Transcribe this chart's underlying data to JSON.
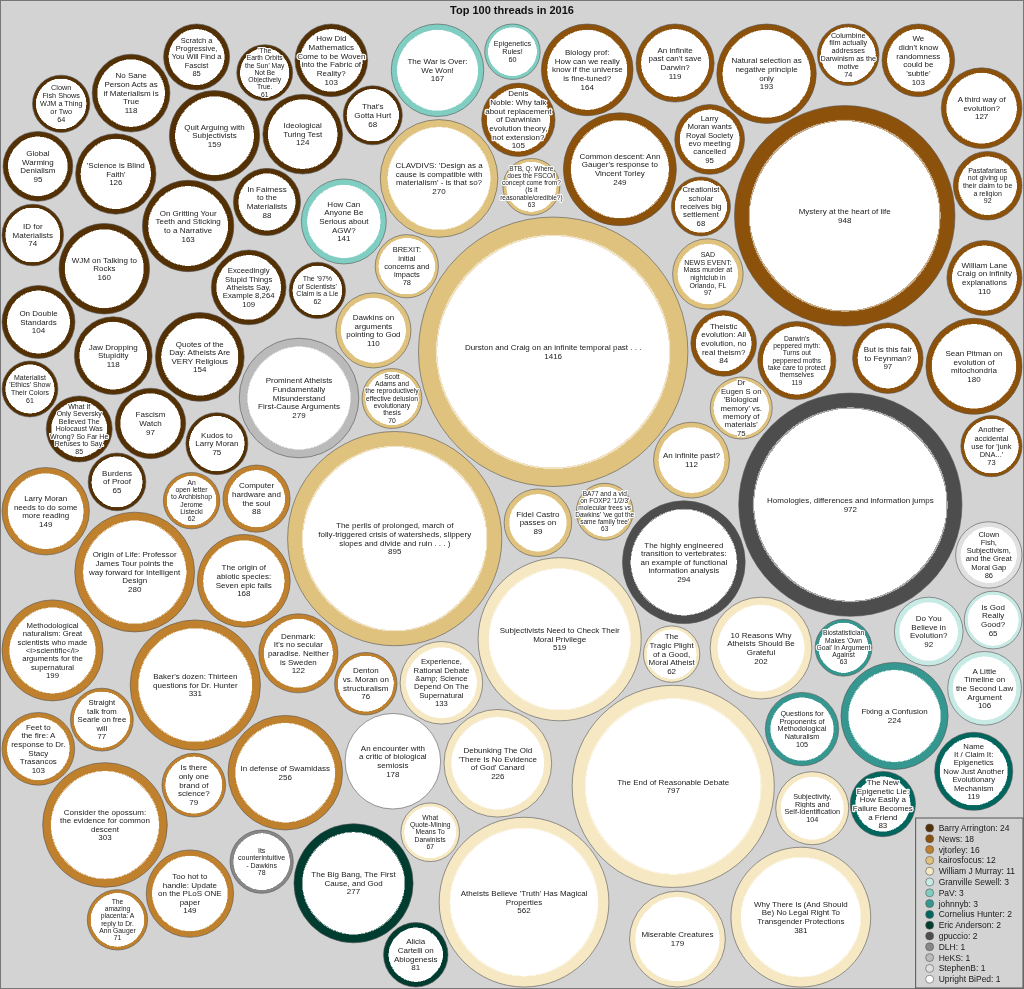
{
  "chart_data": {
    "type": "other",
    "title": "Top 100 threads in 2016",
    "categories": [
      "Durston and Craig on an infinite temporal past . . .",
      "Homologies, differences and information jumps",
      "Mystery at the heart of life",
      "The perils of prolonged, march of folly-triggered crisis of watersheds, slippery slopes and divide and ruin . . . )",
      "The End of Reasonable Debate",
      "Atheists Believe 'Truth' Has Magical Properties",
      "Subjectivists Need to Check Their Moral Privilege",
      "Why There Is (And Should Be) No Legal Right To Transgender Protections",
      "Baker's dozen: Thirteen questions for Dr. Hunter",
      "Consider the opossum: the evidence for common descent",
      "The highly engineered transition to vertebrates: an example of functional information analysis",
      "Origin of Life: Professor James Tour points the way forward for Intelligent Design",
      "Prominent Atheists Fundamentally Misunderstand First-Cause Arguments",
      "The Big Bang, The First Cause, and God",
      "CLAVDIVS: 'Design as a cause is compatible with materialism' - is that so?",
      "In defense of Swamidass",
      "Common descent: Ann Gauger's response to Vincent Torley",
      "Debunking The Old 'There Is No Evidence of God' Canard",
      "Fixing a Confusion",
      "10 Reasons Why Atheists Should Be Grateful",
      "Methodological naturalism: Great scientists who made <i>scientific</i> arguments for the supernatural",
      "Natural selection as negative principle only",
      "Sean Pitman on evolution of mitochondria",
      "Miserable Creatures",
      "An encounter with a critic of biological semiosis",
      "The origin of abiotic species: Seven epic fails",
      "The War is Over: We Won!",
      "Biology prof: How can we really know if the universe is fine-tuned?",
      "On Gritting Your Teeth and Sticking to a Narrative",
      "WJM on Talking to Rocks",
      "Quit Arguing with Subjectivists",
      "Quotes of the Day: Atheists Are VERY Religious",
      "Too hot to handle: Update on the PLoS ONE paper",
      "Larry Moran needs to do some more reading",
      "How Can Anyone Be Serious about AGW?",
      "Experience, Rational Debate &amp; Science Depend On The Supernatural",
      "A third way of evolution?",
      "'Science is Blind Faith'",
      "Ideological Turing Test",
      "Denmark: It's no secular paradise. Neither is Sweden",
      "Darwin's peppered myth: Turns out peppered moths take care to protect themselves",
      "An infinite past can't save Darwin?",
      "Name It / Claim It: Epigenetics Now Just Another Evolutionary Mechanism",
      "Jaw Dropping Stupidity",
      "No Sane Person Acts as if Materialism is True",
      "An infinite past?",
      "Dawkins on arguments pointing to God",
      "William Lane Craig on infinity explanations",
      "Exceedingly Stupid Things Atheists Say, Example 8,264",
      "A Little Timeline on the Second Law Argument",
      "Denis Noble: Why talk about replacement of Darwinian evolution theory, not extension?",
      "Questions for Proponents of Methodological Naturalism",
      "On Double Standards",
      "Subjectivity, Rights and Self-Identification",
      "How Did Mathematics Come to be Woven into the Fabric of Reality?",
      "We didn't know randomness could be 'subtle'",
      "Feet to the fire: A response to Dr. Stacy Trasancos",
      "Fascism Watch",
      "But is this fair to Feynman?",
      "SAD NEWS EVENT: Mass murder at nightclub in Orlando, FL",
      "Global Warming Denialism",
      "Larry Moran wants Royal Society evo meeting cancelled",
      "Pastafarians not giving up their claim to be a religion",
      "Do You Believe in Evolution?",
      "Fidel Castro passes on",
      "In Fairness to the Materialists",
      "Computer hardware and the soul",
      "Clown Fish, Subjectivism, and the Great Moral Gap",
      "What If Only Seversky Believed The Holocaust Was Wrong? So Far He Refuses to Say.",
      "Scratch a Progressive, You Will Find a Fascist",
      "Theistic evolution: All evolution, no real theism?",
      "The New Epigenetic Lie: How Easily a Failure Becomes a Friend",
      "Alicia Cartelli on Abiogenesis",
      "Is there only one brand of science?",
      "BREXIT: initial concerns and impacts",
      "Its counterintuitive - Dawkins",
      "Straight talk from Searle on free will",
      "Denton vs. Moran on structuralism",
      "Kudos to Larry Moran",
      "Dr Eugen S on 'Biological memory' vs. memory of materials'",
      "ID for Materialists",
      "Columbine film actually addresses Darwinism as the motive",
      "Another accidental use for 'junk DNA...'",
      "The amazing placenta: A reply to Dr. Ann Gauger",
      "Scott Adams and the reproductively effective delusion evolutionary thesis",
      "That's Gotta Hurt",
      "Creationist scholar receives big settlement",
      "What Quote-Mining Means To Darwinists",
      "Burdens of Proof",
      "Is God Really Good?",
      "Clown Fish Shows WJM a Thing or Two",
      "BTB, Q: Where does the FSCO/I concept come from? (Is it reasonable/credible?)",
      "BA77 and a vid on FOXP2 '1/2/3' molecular trees vs Dawkins' 'we got the same family tree'",
      "Biostatistician Makes 'Own Goal' In Argument Against",
      "The '97% of Scientists' Claim is a Lie",
      "An open letter to Archbishop Jerome Listecki",
      "The Tragic Plight of a Good, Moral Atheist",
      "Materialist 'Ethics' Show Their Colors",
      "'The Earth Orbits the Sun' May Not Be Objectively True.",
      "Epigenetics Rules!"
    ],
    "data_labels": true,
    "legend": "bottom right",
    "series": [
      {
        "name": "Barry Arrington: 24",
        "color": "#543005",
        "values": [
          null,
          null,
          null,
          null,
          null,
          null,
          null,
          null,
          null,
          null,
          null,
          null,
          null,
          null,
          null,
          null,
          null,
          null,
          null,
          null,
          null,
          null,
          null,
          null,
          null,
          null,
          null,
          null,
          163,
          160,
          159,
          154,
          null,
          null,
          null,
          null,
          null,
          126,
          124,
          null,
          null,
          null,
          null,
          118,
          118,
          null,
          null,
          null,
          109,
          null,
          null,
          null,
          104,
          null,
          103,
          null,
          null,
          97,
          null,
          null,
          95,
          null,
          null,
          null,
          null,
          88,
          null,
          null,
          85,
          85,
          null,
          null,
          null,
          null,
          null,
          null,
          null,
          null,
          75,
          null,
          74,
          null,
          null,
          null,
          null,
          68,
          null,
          null,
          65,
          null,
          64,
          null,
          null,
          null,
          62,
          null,
          null,
          61,
          61,
          null
        ]
      },
      {
        "name": "News: 18",
        "color": "#8c510a",
        "values": [
          null,
          null,
          948,
          null,
          null,
          null,
          null,
          null,
          null,
          null,
          null,
          null,
          null,
          null,
          null,
          null,
          249,
          null,
          null,
          null,
          null,
          193,
          180,
          null,
          null,
          null,
          null,
          164,
          null,
          null,
          null,
          null,
          null,
          null,
          null,
          null,
          127,
          null,
          null,
          null,
          119,
          119,
          null,
          null,
          null,
          null,
          null,
          110,
          null,
          null,
          105,
          null,
          null,
          null,
          null,
          103,
          null,
          null,
          97,
          null,
          null,
          95,
          92,
          null,
          null,
          null,
          null,
          null,
          null,
          null,
          84,
          null,
          null,
          null,
          null,
          null,
          null,
          null,
          null,
          null,
          null,
          74,
          73,
          null,
          null,
          null,
          68,
          null,
          null,
          null,
          null,
          null,
          null,
          null,
          null,
          null,
          null,
          null,
          null,
          null
        ]
      },
      {
        "name": "vjtorley: 16",
        "color": "#bf812d",
        "values": [
          null,
          null,
          null,
          null,
          null,
          null,
          null,
          null,
          331,
          303,
          null,
          280,
          null,
          null,
          null,
          256,
          null,
          null,
          null,
          null,
          199,
          null,
          null,
          null,
          null,
          168,
          null,
          null,
          null,
          null,
          null,
          null,
          149,
          149,
          null,
          null,
          null,
          null,
          null,
          122,
          null,
          null,
          null,
          null,
          null,
          null,
          null,
          null,
          null,
          null,
          null,
          null,
          null,
          null,
          null,
          null,
          103,
          null,
          null,
          null,
          null,
          null,
          null,
          null,
          null,
          null,
          88,
          null,
          null,
          null,
          null,
          null,
          null,
          79,
          null,
          null,
          77,
          76,
          null,
          null,
          null,
          null,
          null,
          71,
          null,
          null,
          null,
          null,
          null,
          null,
          null,
          null,
          null,
          null,
          null,
          62,
          null,
          null,
          null,
          null
        ]
      },
      {
        "name": "kairosfocus: 12",
        "color": "#dfc27d",
        "values": [
          1416,
          null,
          null,
          895,
          null,
          null,
          null,
          null,
          null,
          null,
          null,
          null,
          null,
          null,
          270,
          null,
          null,
          null,
          null,
          null,
          null,
          null,
          null,
          null,
          null,
          null,
          null,
          null,
          null,
          null,
          null,
          null,
          null,
          null,
          null,
          null,
          null,
          null,
          null,
          null,
          null,
          null,
          null,
          null,
          null,
          112,
          110,
          null,
          null,
          null,
          null,
          null,
          null,
          null,
          null,
          null,
          null,
          null,
          null,
          97,
          null,
          null,
          null,
          null,
          89,
          null,
          null,
          null,
          null,
          null,
          null,
          null,
          null,
          null,
          78,
          null,
          null,
          null,
          null,
          75,
          null,
          null,
          null,
          null,
          70,
          null,
          null,
          null,
          null,
          null,
          null,
          63,
          63,
          null,
          null,
          null,
          null,
          null,
          null,
          null
        ]
      },
      {
        "name": "William J Murray: 11",
        "color": "#f6e8c3",
        "values": [
          null,
          null,
          null,
          null,
          797,
          562,
          519,
          381,
          null,
          null,
          null,
          null,
          null,
          null,
          null,
          null,
          null,
          226,
          null,
          202,
          null,
          null,
          null,
          179,
          null,
          null,
          null,
          null,
          null,
          null,
          null,
          null,
          null,
          null,
          null,
          133,
          null,
          null,
          null,
          null,
          null,
          null,
          null,
          null,
          null,
          null,
          null,
          null,
          null,
          null,
          null,
          null,
          null,
          104,
          null,
          null,
          null,
          null,
          null,
          null,
          null,
          null,
          null,
          null,
          null,
          null,
          null,
          null,
          null,
          null,
          null,
          null,
          null,
          null,
          null,
          null,
          null,
          null,
          null,
          null,
          null,
          null,
          null,
          null,
          null,
          null,
          null,
          67,
          null,
          null,
          null,
          null,
          null,
          null,
          null,
          null,
          62,
          null,
          null,
          null
        ]
      },
      {
        "name": "Granville Sewell: 3",
        "color": "#c7eae5",
        "values": [
          null,
          null,
          null,
          null,
          null,
          null,
          null,
          null,
          null,
          null,
          null,
          null,
          null,
          null,
          null,
          null,
          null,
          null,
          null,
          null,
          null,
          null,
          null,
          null,
          null,
          null,
          null,
          null,
          null,
          null,
          null,
          null,
          null,
          null,
          null,
          null,
          null,
          null,
          null,
          null,
          null,
          null,
          null,
          null,
          null,
          null,
          null,
          null,
          null,
          106,
          null,
          null,
          null,
          null,
          null,
          null,
          null,
          null,
          null,
          null,
          null,
          null,
          null,
          92,
          null,
          null,
          null,
          null,
          null,
          null,
          null,
          null,
          null,
          null,
          null,
          null,
          null,
          null,
          null,
          null,
          null,
          null,
          null,
          null,
          null,
          null,
          null,
          null,
          null,
          65,
          null,
          null,
          null,
          null,
          null,
          null,
          null,
          null,
          null,
          null
        ]
      },
      {
        "name": "PaV: 3",
        "color": "#80cdc1",
        "values": [
          null,
          null,
          null,
          null,
          null,
          null,
          null,
          null,
          null,
          null,
          null,
          null,
          null,
          null,
          null,
          null,
          null,
          null,
          null,
          null,
          null,
          null,
          null,
          null,
          null,
          null,
          167,
          null,
          null,
          null,
          null,
          null,
          null,
          null,
          141,
          null,
          null,
          null,
          null,
          null,
          null,
          null,
          null,
          null,
          null,
          null,
          null,
          null,
          null,
          null,
          null,
          null,
          null,
          null,
          null,
          null,
          null,
          null,
          null,
          null,
          null,
          null,
          null,
          null,
          null,
          null,
          null,
          null,
          null,
          null,
          null,
          null,
          null,
          null,
          null,
          null,
          null,
          null,
          null,
          null,
          null,
          null,
          null,
          null,
          null,
          null,
          null,
          null,
          null,
          null,
          null,
          null,
          null,
          null,
          null,
          null,
          null,
          null,
          null,
          60
        ]
      },
      {
        "name": "johnnyb: 3",
        "color": "#35978f",
        "values": [
          null,
          null,
          null,
          null,
          null,
          null,
          null,
          null,
          null,
          null,
          null,
          null,
          null,
          null,
          null,
          null,
          null,
          null,
          224,
          null,
          null,
          null,
          null,
          null,
          null,
          null,
          null,
          null,
          null,
          null,
          null,
          null,
          null,
          null,
          null,
          null,
          null,
          null,
          null,
          null,
          null,
          null,
          null,
          null,
          null,
          null,
          null,
          null,
          null,
          null,
          null,
          105,
          null,
          null,
          null,
          null,
          null,
          null,
          null,
          null,
          null,
          null,
          null,
          null,
          null,
          null,
          null,
          null,
          null,
          null,
          null,
          null,
          null,
          null,
          null,
          null,
          null,
          null,
          null,
          null,
          null,
          null,
          null,
          null,
          null,
          null,
          null,
          null,
          null,
          null,
          null,
          null,
          null,
          63,
          null,
          null,
          null,
          null,
          null,
          null
        ]
      },
      {
        "name": "Cornelius Hunter: 2",
        "color": "#01665e",
        "values": [
          null,
          null,
          null,
          null,
          null,
          null,
          null,
          null,
          null,
          null,
          null,
          null,
          null,
          null,
          null,
          null,
          null,
          null,
          null,
          null,
          null,
          null,
          null,
          null,
          null,
          null,
          null,
          null,
          null,
          null,
          null,
          null,
          null,
          null,
          null,
          null,
          null,
          null,
          null,
          null,
          null,
          null,
          119,
          null,
          null,
          null,
          null,
          null,
          null,
          null,
          null,
          null,
          null,
          null,
          null,
          null,
          null,
          null,
          null,
          null,
          null,
          null,
          null,
          null,
          null,
          null,
          null,
          null,
          null,
          null,
          null,
          83,
          null,
          null,
          null,
          null,
          null,
          null,
          null,
          null,
          null,
          null,
          null,
          null,
          null,
          null,
          null,
          null,
          null,
          null,
          null,
          null,
          null,
          null,
          null,
          null,
          null,
          null,
          null,
          null
        ]
      },
      {
        "name": "Eric Anderson: 2",
        "color": "#003c30",
        "values": [
          null,
          null,
          null,
          null,
          null,
          null,
          null,
          null,
          null,
          null,
          null,
          null,
          null,
          277,
          null,
          null,
          null,
          null,
          null,
          null,
          null,
          null,
          null,
          null,
          null,
          null,
          null,
          null,
          null,
          null,
          null,
          null,
          null,
          null,
          null,
          null,
          null,
          null,
          null,
          null,
          null,
          null,
          null,
          null,
          null,
          null,
          null,
          null,
          null,
          null,
          null,
          null,
          null,
          null,
          null,
          null,
          null,
          null,
          null,
          null,
          null,
          null,
          null,
          null,
          null,
          null,
          null,
          null,
          null,
          null,
          null,
          null,
          81,
          null,
          null,
          null,
          null,
          null,
          null,
          null,
          null,
          null,
          null,
          null,
          null,
          null,
          null,
          null,
          null,
          null,
          null,
          null,
          null,
          null,
          null,
          null,
          null,
          null,
          null,
          null
        ]
      },
      {
        "name": "gpuccio: 2",
        "color": "#4d4d4d",
        "values": [
          null,
          972,
          null,
          null,
          null,
          null,
          null,
          null,
          null,
          null,
          294,
          null,
          null,
          null,
          null,
          null,
          null,
          null,
          null,
          null,
          null,
          null,
          null,
          null,
          null,
          null,
          null,
          null,
          null,
          null,
          null,
          null,
          null,
          null,
          null,
          null,
          null,
          null,
          null,
          null,
          null,
          null,
          null,
          null,
          null,
          null,
          null,
          null,
          null,
          null,
          null,
          null,
          null,
          null,
          null,
          null,
          null,
          null,
          null,
          null,
          null,
          null,
          null,
          null,
          null,
          null,
          null,
          null,
          null,
          null,
          null,
          null,
          null,
          null,
          null,
          null,
          null,
          null,
          null,
          null,
          null,
          null,
          null,
          null,
          null,
          null,
          null,
          null,
          null,
          null,
          null,
          null,
          null,
          null,
          null,
          null,
          null,
          null,
          null,
          null
        ]
      },
      {
        "name": "DLH: 1",
        "color": "#878787",
        "values": [
          null,
          null,
          null,
          null,
          null,
          null,
          null,
          null,
          null,
          null,
          null,
          null,
          null,
          null,
          null,
          null,
          null,
          null,
          null,
          null,
          null,
          null,
          null,
          null,
          null,
          null,
          null,
          null,
          null,
          null,
          null,
          null,
          null,
          null,
          null,
          null,
          null,
          null,
          null,
          null,
          null,
          null,
          null,
          null,
          null,
          null,
          null,
          null,
          null,
          null,
          null,
          null,
          null,
          null,
          null,
          null,
          null,
          null,
          null,
          null,
          null,
          null,
          null,
          null,
          null,
          null,
          null,
          null,
          null,
          null,
          null,
          null,
          null,
          null,
          null,
          78,
          null,
          null,
          null,
          null,
          null,
          null,
          null,
          null,
          null,
          null,
          null,
          null,
          null,
          null,
          null,
          null,
          null,
          null,
          null,
          null,
          null,
          null,
          null,
          null
        ]
      },
      {
        "name": "HeKS: 1",
        "color": "#bababa",
        "values": [
          null,
          null,
          null,
          null,
          null,
          null,
          null,
          null,
          null,
          null,
          null,
          null,
          279,
          null,
          null,
          null,
          null,
          null,
          null,
          null,
          null,
          null,
          null,
          null,
          null,
          null,
          null,
          null,
          null,
          null,
          null,
          null,
          null,
          null,
          null,
          null,
          null,
          null,
          null,
          null,
          null,
          null,
          null,
          null,
          null,
          null,
          null,
          null,
          null,
          null,
          null,
          null,
          null,
          null,
          null,
          null,
          null,
          null,
          null,
          null,
          null,
          null,
          null,
          null,
          null,
          null,
          null,
          null,
          null,
          null,
          null,
          null,
          null,
          null,
          null,
          null,
          null,
          null,
          null,
          null,
          null,
          null,
          null,
          null,
          null,
          null,
          null,
          null,
          null,
          null,
          null,
          null,
          null,
          null,
          null,
          null,
          null,
          null,
          null,
          null
        ]
      },
      {
        "name": "StephenB: 1",
        "color": "#e0e0e0",
        "values": [
          null,
          null,
          null,
          null,
          null,
          null,
          null,
          null,
          null,
          null,
          null,
          null,
          null,
          null,
          null,
          null,
          null,
          null,
          null,
          null,
          null,
          null,
          null,
          null,
          null,
          null,
          null,
          null,
          null,
          null,
          null,
          null,
          null,
          null,
          null,
          null,
          null,
          null,
          null,
          null,
          null,
          null,
          null,
          null,
          null,
          null,
          null,
          null,
          null,
          null,
          null,
          null,
          null,
          null,
          null,
          null,
          null,
          null,
          null,
          null,
          null,
          null,
          null,
          null,
          null,
          null,
          null,
          86,
          null,
          null,
          null,
          null,
          null,
          null,
          null,
          null,
          null,
          null,
          null,
          null,
          null,
          null,
          null,
          null,
          null,
          null,
          null,
          null,
          null,
          null,
          null,
          null,
          null,
          null,
          null,
          null,
          null,
          null,
          null,
          null
        ]
      },
      {
        "name": "Upright BiPed: 1",
        "color": "#ffffff",
        "values": [
          null,
          null,
          null,
          null,
          null,
          null,
          null,
          null,
          null,
          null,
          null,
          null,
          null,
          null,
          null,
          null,
          null,
          null,
          null,
          null,
          null,
          null,
          null,
          null,
          178,
          null,
          null,
          null,
          null,
          null,
          null,
          null,
          null,
          null,
          null,
          null,
          null,
          null,
          null,
          null,
          null,
          null,
          null,
          null,
          null,
          null,
          null,
          null,
          null,
          null,
          null,
          null,
          null,
          null,
          null,
          null,
          null,
          null,
          null,
          null,
          null,
          null,
          null,
          null,
          null,
          null,
          null,
          null,
          null,
          null,
          null,
          null,
          null,
          null,
          null,
          null,
          null,
          null,
          null,
          null,
          null,
          null,
          null,
          null,
          null,
          null,
          null,
          null,
          null,
          null,
          null,
          null,
          null,
          null,
          null,
          null,
          null,
          null,
          null,
          null
        ]
      }
    ]
  }
}
